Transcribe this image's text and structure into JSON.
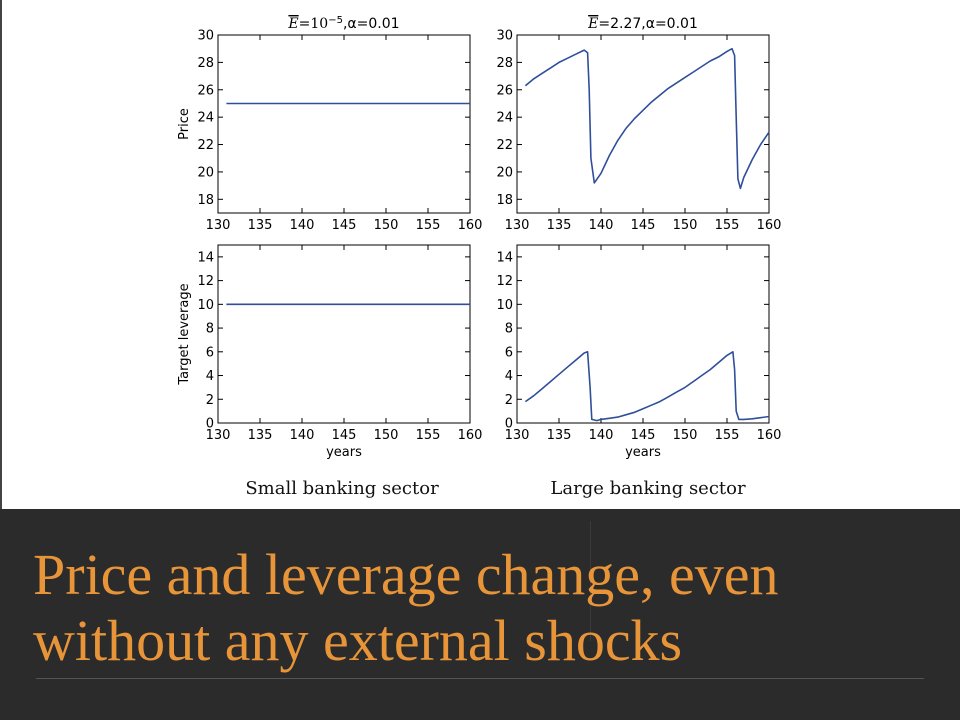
{
  "slide": {
    "headline": "Price and leverage change, even without any external shocks",
    "captions": {
      "left": "Small banking sector",
      "right": "Large banking sector"
    },
    "headline_color": "#e8953a",
    "footer_background": "#2b2b2b"
  },
  "chart_data": [
    {
      "type": "line",
      "panel": "top-left",
      "title": "E̅=10⁻⁵,α=0.01",
      "title_parts": {
        "e": "E",
        "eq": "=",
        "base": "10",
        "exp": "−5",
        "rest": ",α=0.01"
      },
      "xlabel": "",
      "ylabel": "Price",
      "xlim": [
        130,
        160
      ],
      "ylim": [
        17,
        30
      ],
      "xticks": [
        "130",
        "135",
        "140",
        "145",
        "150",
        "155",
        "160"
      ],
      "yticks": [
        "18",
        "20",
        "22",
        "24",
        "26",
        "28",
        "30"
      ],
      "series": [
        {
          "x": [
            131,
            160
          ],
          "y": [
            25,
            25
          ]
        }
      ],
      "line_color": "#2f4f9a",
      "grid": false
    },
    {
      "type": "line",
      "panel": "top-right",
      "title": "E̅=2.27,α=0.01",
      "title_parts": {
        "e": "E",
        "eq": "=",
        "rest": "2.27,α=0.01"
      },
      "xlabel": "",
      "ylabel": "",
      "xlim": [
        130,
        160
      ],
      "ylim": [
        17,
        30
      ],
      "xticks": [
        "130",
        "135",
        "140",
        "145",
        "150",
        "155",
        "160"
      ],
      "yticks": [
        "18",
        "20",
        "22",
        "24",
        "26",
        "28",
        "30"
      ],
      "series": [
        {
          "x": [
            131,
            132,
            133,
            134,
            135,
            136,
            137,
            138,
            138.4,
            138.6,
            138.8,
            139.2,
            140,
            141,
            142,
            143,
            144,
            145,
            146,
            147,
            148,
            149,
            150,
            151,
            152,
            153,
            154,
            155,
            155.6,
            155.9,
            156.1,
            156.3,
            156.6,
            157,
            158,
            159,
            160
          ],
          "y": [
            26.3,
            26.8,
            27.2,
            27.6,
            28.0,
            28.3,
            28.6,
            28.9,
            28.7,
            26.0,
            21.0,
            19.2,
            19.9,
            21.2,
            22.3,
            23.2,
            23.9,
            24.5,
            25.1,
            25.6,
            26.1,
            26.5,
            26.9,
            27.3,
            27.7,
            28.1,
            28.4,
            28.8,
            29.0,
            28.5,
            24.0,
            19.5,
            18.8,
            19.6,
            20.9,
            22.0,
            22.9
          ]
        }
      ],
      "line_color": "#2f4f9a",
      "grid": false
    },
    {
      "type": "line",
      "panel": "bottom-left",
      "title": "",
      "xlabel": "years",
      "ylabel": "Target leverage",
      "xlim": [
        130,
        160
      ],
      "ylim": [
        0,
        15
      ],
      "xticks": [
        "130",
        "135",
        "140",
        "145",
        "150",
        "155",
        "160"
      ],
      "yticks": [
        "0",
        "2",
        "4",
        "6",
        "8",
        "10",
        "12",
        "14"
      ],
      "series": [
        {
          "x": [
            131,
            160
          ],
          "y": [
            10,
            10
          ]
        }
      ],
      "line_color": "#2f4f9a",
      "grid": false
    },
    {
      "type": "line",
      "panel": "bottom-right",
      "title": "",
      "xlabel": "years",
      "ylabel": "",
      "xlim": [
        130,
        160
      ],
      "ylim": [
        0,
        15
      ],
      "xticks": [
        "130",
        "135",
        "140",
        "145",
        "150",
        "155",
        "160"
      ],
      "yticks": [
        "0",
        "2",
        "4",
        "6",
        "8",
        "10",
        "12",
        "14"
      ],
      "series": [
        {
          "x": [
            131,
            132,
            133,
            134,
            135,
            136,
            137,
            138,
            138.4,
            138.7,
            138.9,
            139.5,
            140,
            141,
            142,
            143,
            144,
            145,
            146,
            147,
            148,
            149,
            150,
            151,
            152,
            153,
            154,
            155,
            155.7,
            155.9,
            156.1,
            156.4,
            157,
            158,
            159,
            160
          ],
          "y": [
            1.8,
            2.3,
            2.9,
            3.5,
            4.1,
            4.7,
            5.3,
            5.9,
            6.0,
            3.0,
            0.3,
            0.2,
            0.3,
            0.4,
            0.5,
            0.7,
            0.9,
            1.2,
            1.5,
            1.8,
            2.2,
            2.6,
            3.0,
            3.5,
            4.0,
            4.5,
            5.1,
            5.7,
            6.0,
            4.5,
            1.0,
            0.3,
            0.3,
            0.35,
            0.45,
            0.55
          ]
        }
      ],
      "line_color": "#2f4f9a",
      "grid": false
    }
  ]
}
